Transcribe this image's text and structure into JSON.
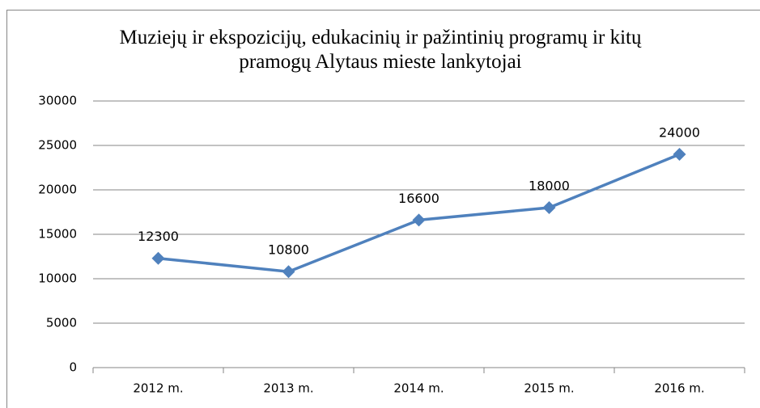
{
  "chart_data": {
    "type": "line",
    "title": "Muziejų ir ekspozicijų, edukacinių ir pažintinių programų ir kitų pramogų Alytaus mieste lankytojai",
    "categories": [
      "2012 m.",
      "2013 m.",
      "2014 m.",
      "2015 m.",
      "2016 m."
    ],
    "values": [
      12300,
      10800,
      16600,
      18000,
      24000
    ],
    "color": "#4f81bd",
    "ylim": [
      0,
      30000
    ],
    "yticks": [
      0,
      5000,
      10000,
      15000,
      20000,
      25000,
      30000
    ],
    "grid": true
  }
}
